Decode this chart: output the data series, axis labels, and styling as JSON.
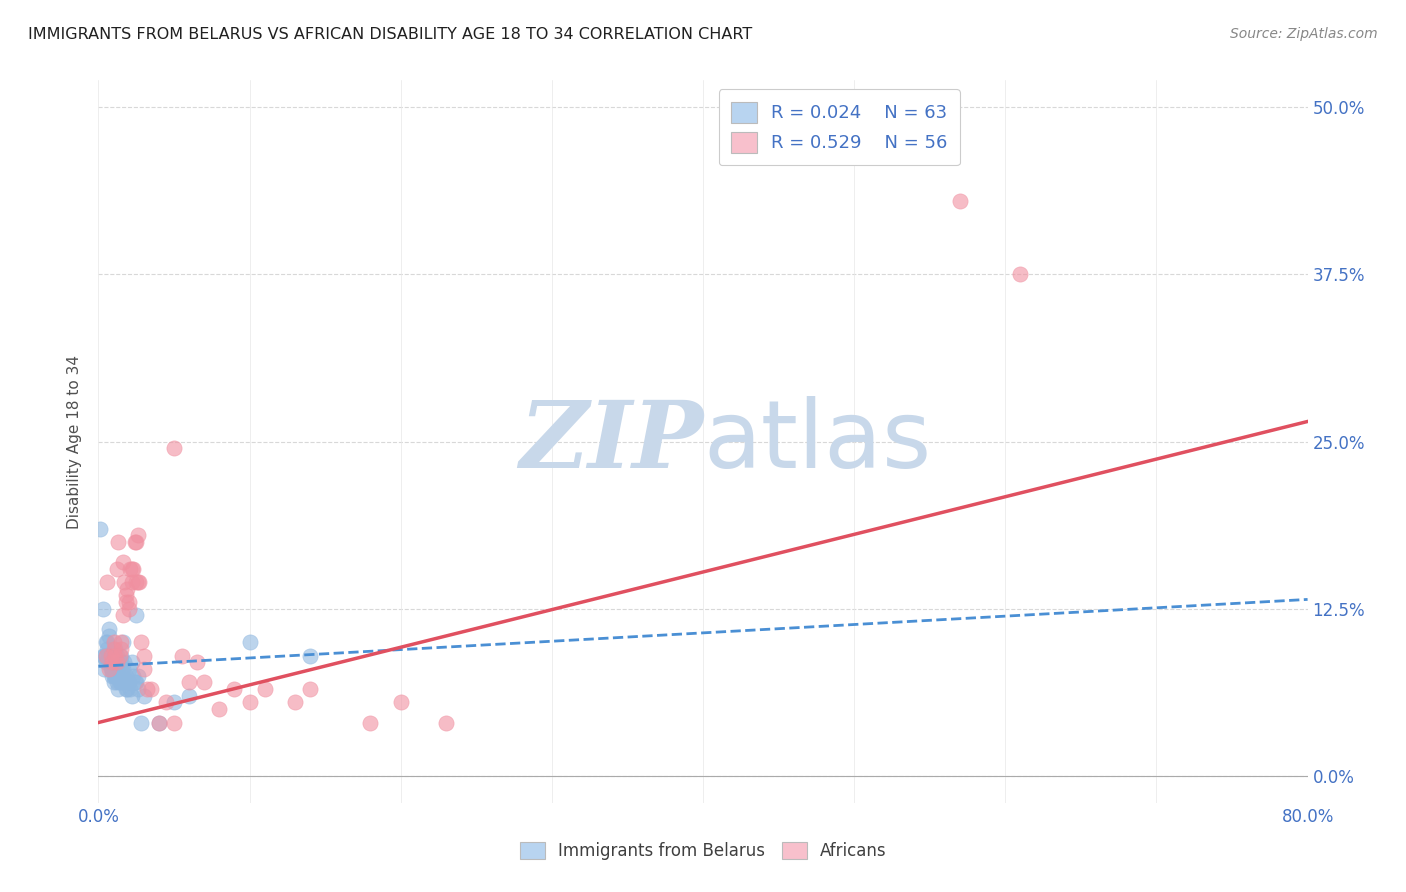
{
  "title": "IMMIGRANTS FROM BELARUS VS AFRICAN DISABILITY AGE 18 TO 34 CORRELATION CHART",
  "source": "Source: ZipAtlas.com",
  "xlabel_ticks": [
    "0.0%",
    "",
    "",
    "",
    "",
    "",
    "",
    "",
    "80.0%"
  ],
  "ylabel_ticks": [
    "0.0%",
    "12.5%",
    "25.0%",
    "37.5%",
    "50.0%"
  ],
  "ylabel_label": "Disability Age 18 to 34",
  "xlim": [
    0.0,
    0.8
  ],
  "ylim": [
    -0.02,
    0.52
  ],
  "legend1_R": "0.024",
  "legend1_N": "63",
  "legend2_R": "0.529",
  "legend2_N": "56",
  "legend1_color": "#b8d4f0",
  "legend2_color": "#f8c0cc",
  "scatter1_color": "#90b8e0",
  "scatter2_color": "#f090a0",
  "trendline1_color": "#4a8fd4",
  "trendline2_color": "#e05060",
  "watermark_color": "#c8d8ea",
  "grid_color": "#d8d8d8",
  "title_color": "#202020",
  "axis_label_color": "#4472c4",
  "blue_data": [
    [
      0.001,
      0.185
    ],
    [
      0.003,
      0.125
    ],
    [
      0.003,
      0.09
    ],
    [
      0.004,
      0.08
    ],
    [
      0.004,
      0.09
    ],
    [
      0.005,
      0.1
    ],
    [
      0.005,
      0.09
    ],
    [
      0.005,
      0.085
    ],
    [
      0.006,
      0.1
    ],
    [
      0.006,
      0.095
    ],
    [
      0.007,
      0.11
    ],
    [
      0.007,
      0.105
    ],
    [
      0.007,
      0.09
    ],
    [
      0.008,
      0.08
    ],
    [
      0.008,
      0.09
    ],
    [
      0.008,
      0.085
    ],
    [
      0.009,
      0.08
    ],
    [
      0.009,
      0.075
    ],
    [
      0.009,
      0.085
    ],
    [
      0.01,
      0.085
    ],
    [
      0.01,
      0.09
    ],
    [
      0.01,
      0.08
    ],
    [
      0.01,
      0.075
    ],
    [
      0.01,
      0.07
    ],
    [
      0.011,
      0.095
    ],
    [
      0.011,
      0.08
    ],
    [
      0.011,
      0.075
    ],
    [
      0.012,
      0.09
    ],
    [
      0.012,
      0.075
    ],
    [
      0.012,
      0.07
    ],
    [
      0.013,
      0.08
    ],
    [
      0.013,
      0.075
    ],
    [
      0.013,
      0.065
    ],
    [
      0.014,
      0.07
    ],
    [
      0.015,
      0.09
    ],
    [
      0.015,
      0.085
    ],
    [
      0.015,
      0.07
    ],
    [
      0.016,
      0.08
    ],
    [
      0.016,
      0.075
    ],
    [
      0.016,
      0.1
    ],
    [
      0.017,
      0.085
    ],
    [
      0.018,
      0.07
    ],
    [
      0.018,
      0.075
    ],
    [
      0.018,
      0.065
    ],
    [
      0.019,
      0.065
    ],
    [
      0.02,
      0.08
    ],
    [
      0.02,
      0.07
    ],
    [
      0.021,
      0.065
    ],
    [
      0.022,
      0.085
    ],
    [
      0.022,
      0.06
    ],
    [
      0.023,
      0.075
    ],
    [
      0.024,
      0.07
    ],
    [
      0.025,
      0.07
    ],
    [
      0.025,
      0.12
    ],
    [
      0.026,
      0.075
    ],
    [
      0.026,
      0.065
    ],
    [
      0.028,
      0.04
    ],
    [
      0.03,
      0.06
    ],
    [
      0.04,
      0.04
    ],
    [
      0.05,
      0.055
    ],
    [
      0.06,
      0.06
    ],
    [
      0.1,
      0.1
    ],
    [
      0.14,
      0.09
    ]
  ],
  "pink_data": [
    [
      0.005,
      0.09
    ],
    [
      0.006,
      0.145
    ],
    [
      0.007,
      0.08
    ],
    [
      0.008,
      0.09
    ],
    [
      0.009,
      0.085
    ],
    [
      0.01,
      0.095
    ],
    [
      0.01,
      0.1
    ],
    [
      0.011,
      0.09
    ],
    [
      0.012,
      0.085
    ],
    [
      0.012,
      0.155
    ],
    [
      0.013,
      0.175
    ],
    [
      0.014,
      0.09
    ],
    [
      0.015,
      0.095
    ],
    [
      0.015,
      0.1
    ],
    [
      0.016,
      0.12
    ],
    [
      0.016,
      0.16
    ],
    [
      0.017,
      0.145
    ],
    [
      0.018,
      0.13
    ],
    [
      0.018,
      0.135
    ],
    [
      0.019,
      0.14
    ],
    [
      0.02,
      0.13
    ],
    [
      0.02,
      0.125
    ],
    [
      0.021,
      0.155
    ],
    [
      0.022,
      0.145
    ],
    [
      0.022,
      0.155
    ],
    [
      0.023,
      0.155
    ],
    [
      0.024,
      0.175
    ],
    [
      0.025,
      0.175
    ],
    [
      0.025,
      0.145
    ],
    [
      0.026,
      0.18
    ],
    [
      0.026,
      0.145
    ],
    [
      0.027,
      0.145
    ],
    [
      0.028,
      0.1
    ],
    [
      0.03,
      0.08
    ],
    [
      0.03,
      0.09
    ],
    [
      0.032,
      0.065
    ],
    [
      0.035,
      0.065
    ],
    [
      0.04,
      0.04
    ],
    [
      0.045,
      0.055
    ],
    [
      0.05,
      0.04
    ],
    [
      0.05,
      0.245
    ],
    [
      0.055,
      0.09
    ],
    [
      0.06,
      0.07
    ],
    [
      0.065,
      0.085
    ],
    [
      0.07,
      0.07
    ],
    [
      0.08,
      0.05
    ],
    [
      0.09,
      0.065
    ],
    [
      0.1,
      0.055
    ],
    [
      0.11,
      0.065
    ],
    [
      0.13,
      0.055
    ],
    [
      0.14,
      0.065
    ],
    [
      0.18,
      0.04
    ],
    [
      0.2,
      0.055
    ],
    [
      0.23,
      0.04
    ],
    [
      0.57,
      0.43
    ],
    [
      0.61,
      0.375
    ]
  ],
  "trendline1_x": [
    0.0,
    0.8
  ],
  "trendline1_y": [
    0.082,
    0.132
  ],
  "trendline2_x": [
    0.0,
    0.8
  ],
  "trendline2_y": [
    0.04,
    0.265
  ]
}
